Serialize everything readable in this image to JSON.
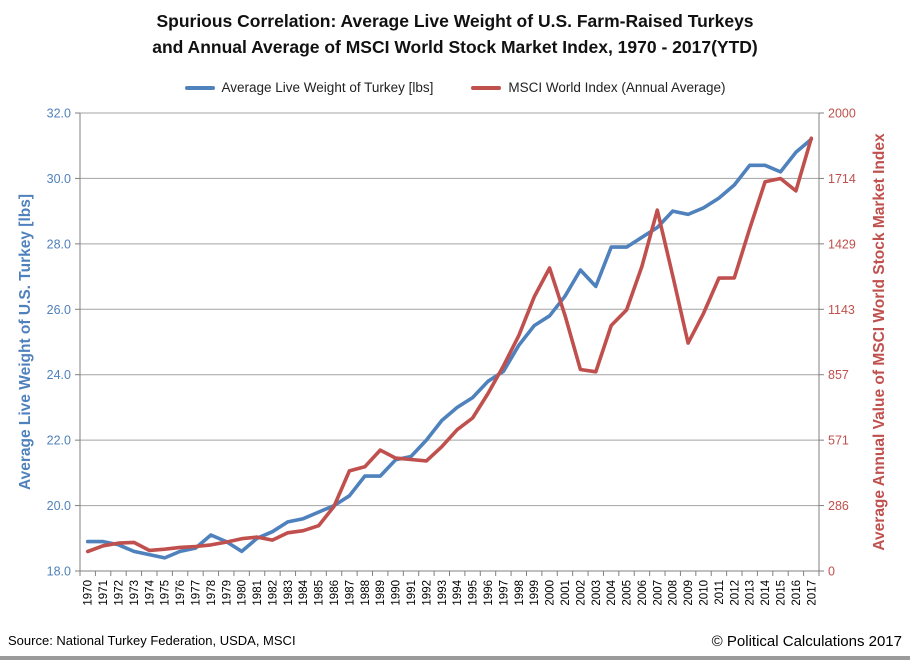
{
  "title": {
    "line1": "Spurious Correlation: Average Live Weight of U.S. Farm-Raised Turkeys",
    "line2": "and Annual Average of MSCI World Stock Market Index, 1970 - 2017(YTD)"
  },
  "legend": [
    {
      "label": "Average Live Weight of Turkey [lbs]",
      "color": "#4F81BD"
    },
    {
      "label": "MSCI World Index (Annual Average)",
      "color": "#C0504D"
    }
  ],
  "left_axis": {
    "title": "Average Live Weight of U.S. Turkey [lbs]",
    "ticks": [
      "18.0",
      "20.0",
      "22.0",
      "24.0",
      "26.0",
      "28.0",
      "30.0",
      "32.0"
    ],
    "min": 18,
    "max": 32,
    "color": "#4F81BD"
  },
  "right_axis": {
    "title": "Average Annual Value of MSCI World Stock Market Index",
    "ticks": [
      "0",
      "286",
      "571",
      "857",
      "1143",
      "1429",
      "1714",
      "2000"
    ],
    "min": 0,
    "max": 2000,
    "color": "#C0504D"
  },
  "footer": {
    "source": "Source: National Turkey Federation, USDA, MSCI",
    "copyright": "© Political Calculations 2017"
  },
  "colors": {
    "grid": "#a3a3a3",
    "axis": "#808080",
    "x_label": "#000000"
  },
  "chart_data": {
    "type": "line",
    "title": "Spurious Correlation: Average Live Weight of U.S. Farm-Raised Turkeys and Annual Average of MSCI World Stock Market Index, 1970 - 2017(YTD)",
    "grid": true,
    "legend_position": "top",
    "left_ylim": [
      18.0,
      32.0
    ],
    "right_ylim": [
      0,
      2000
    ],
    "x": [
      1970,
      1971,
      1972,
      1973,
      1974,
      1975,
      1976,
      1977,
      1978,
      1979,
      1980,
      1981,
      1982,
      1983,
      1984,
      1985,
      1986,
      1987,
      1988,
      1989,
      1990,
      1991,
      1992,
      1993,
      1994,
      1995,
      1996,
      1997,
      1998,
      1999,
      2000,
      2001,
      2002,
      2003,
      2004,
      2005,
      2006,
      2007,
      2008,
      2009,
      2010,
      2011,
      2012,
      2013,
      2014,
      2015,
      2016,
      2017
    ],
    "series": [
      {
        "name": "Average Live Weight of Turkey [lbs]",
        "axis": "left",
        "color": "#4F81BD",
        "values": [
          18.9,
          18.9,
          18.8,
          18.6,
          18.5,
          18.4,
          18.6,
          18.7,
          19.1,
          18.9,
          18.6,
          19.0,
          19.2,
          19.5,
          19.6,
          19.8,
          20.0,
          20.3,
          20.9,
          20.9,
          21.4,
          21.5,
          22.0,
          22.6,
          23.0,
          23.3,
          23.8,
          24.1,
          24.9,
          25.5,
          25.8,
          26.4,
          27.2,
          26.7,
          27.9,
          27.9,
          28.2,
          28.5,
          29.0,
          28.9,
          29.1,
          29.4,
          29.8,
          30.4,
          30.4,
          30.2,
          30.8,
          31.2
        ]
      },
      {
        "name": "MSCI World Index (Annual Average)",
        "axis": "right",
        "color": "#C0504D",
        "values": [
          85,
          110,
          122,
          125,
          90,
          95,
          103,
          107,
          114,
          126,
          141,
          148,
          135,
          167,
          176,
          198,
          282,
          437,
          455,
          528,
          493,
          487,
          481,
          543,
          617,
          668,
          775,
          895,
          1028,
          1197,
          1323,
          1116,
          880,
          870,
          1072,
          1140,
          1330,
          1576,
          1290,
          995,
          1125,
          1279,
          1280,
          1495,
          1700,
          1714,
          1660,
          1890
        ]
      }
    ]
  }
}
